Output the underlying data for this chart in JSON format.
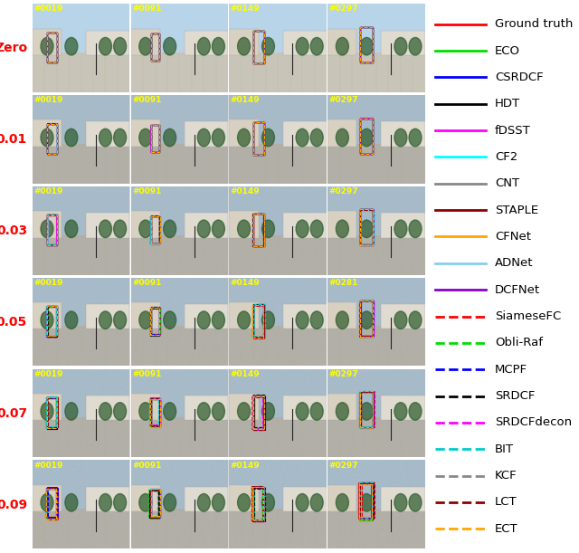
{
  "legend_entries": [
    {
      "label": "Ground truth",
      "color": "#ff0000",
      "linestyle": "solid",
      "lw": 2.0
    },
    {
      "label": "ECO",
      "color": "#00dd00",
      "linestyle": "solid",
      "lw": 2.0
    },
    {
      "label": "CSRDCF",
      "color": "#0000ff",
      "linestyle": "solid",
      "lw": 2.0
    },
    {
      "label": "HDT",
      "color": "#000000",
      "linestyle": "solid",
      "lw": 2.0
    },
    {
      "label": "fDSST",
      "color": "#ff00ff",
      "linestyle": "solid",
      "lw": 2.0
    },
    {
      "label": "CF2",
      "color": "#00ffff",
      "linestyle": "solid",
      "lw": 2.0
    },
    {
      "label": "CNT",
      "color": "#888888",
      "linestyle": "solid",
      "lw": 2.0
    },
    {
      "label": "STAPLE",
      "color": "#8b0000",
      "linestyle": "solid",
      "lw": 2.0
    },
    {
      "label": "CFNet",
      "color": "#ffa500",
      "linestyle": "solid",
      "lw": 2.0
    },
    {
      "label": "ADNet",
      "color": "#87ceeb",
      "linestyle": "solid",
      "lw": 2.0
    },
    {
      "label": "DCFNet",
      "color": "#8800cc",
      "linestyle": "solid",
      "lw": 2.0
    },
    {
      "label": "SiameseFC",
      "color": "#ff0000",
      "linestyle": "dashed",
      "lw": 2.0
    },
    {
      "label": "Obli-Raf",
      "color": "#00dd00",
      "linestyle": "dashed",
      "lw": 2.0
    },
    {
      "label": "MCPF",
      "color": "#0000ff",
      "linestyle": "dashed",
      "lw": 2.0
    },
    {
      "label": "SRDCF",
      "color": "#000000",
      "linestyle": "dashed",
      "lw": 2.0
    },
    {
      "label": "SRDCFdecon",
      "color": "#ff00ff",
      "linestyle": "dashed",
      "lw": 2.0
    },
    {
      "label": "BIT",
      "color": "#00cccc",
      "linestyle": "dashed",
      "lw": 2.0
    },
    {
      "label": "KCF",
      "color": "#888888",
      "linestyle": "dashed",
      "lw": 2.0
    },
    {
      "label": "LCT",
      "color": "#8b0000",
      "linestyle": "dashed",
      "lw": 2.0
    },
    {
      "label": "ECT",
      "color": "#ffa500",
      "linestyle": "dashed",
      "lw": 2.0
    }
  ],
  "row_labels": [
    "Zero",
    "0.01",
    "0.03",
    "0.05",
    "0.07",
    "0.09"
  ],
  "row_label_color": "#ff0000",
  "frame_labels_per_row": [
    [
      "#0019",
      "#0091",
      "#0149",
      "#0297"
    ],
    [
      "#0019",
      "#0091",
      "#0149",
      "#0297"
    ],
    [
      "#0019",
      "#0091",
      "#0149",
      "#0297"
    ],
    [
      "#0019",
      "#0091",
      "#0149",
      "#0281"
    ],
    [
      "#0019",
      "#0091",
      "#0149",
      "#0297"
    ],
    [
      "#0019",
      "#0091",
      "#0149",
      "#0297"
    ]
  ],
  "frame_label_color": "#ffff00",
  "n_rows": 6,
  "n_cols": 4,
  "background_color": "#ffffff",
  "legend_fontsize": 9.5,
  "row_label_fontsize": 10,
  "frame_label_fontsize": 6.5
}
